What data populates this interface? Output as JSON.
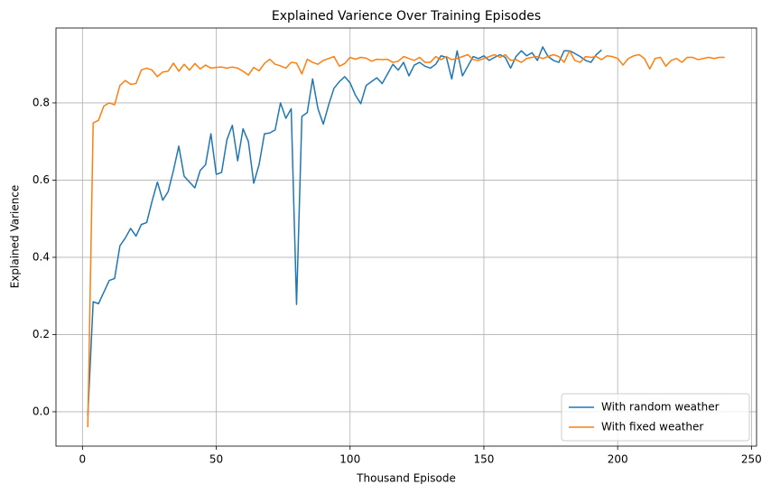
{
  "chart_data": {
    "type": "line",
    "title": "Explained Varience Over Training Episodes",
    "x_label": "Thousand Episode",
    "y_label": "Explained Varience",
    "xlim": [
      -9.9,
      251.9
    ],
    "ylim": [
      -0.089,
      0.994
    ],
    "xticks": [
      0,
      50,
      100,
      150,
      200,
      250
    ],
    "yticks": [
      {
        "value": 0,
        "label": "0.0"
      },
      0.2,
      0.4,
      0.6,
      0.8
    ],
    "grid": true,
    "legend": "lower right",
    "series": [
      {
        "name": "With random weather",
        "color": "#1f77b4",
        "x": [
          2,
          4,
          6,
          8,
          10,
          12,
          14,
          16,
          18,
          20,
          22,
          24,
          26,
          28,
          30,
          32,
          34,
          36,
          38,
          40,
          42,
          44,
          46,
          48,
          50,
          52,
          54,
          56,
          58,
          60,
          62,
          64,
          66,
          68,
          70,
          72,
          74,
          76,
          78,
          80,
          82,
          84,
          86,
          88,
          90,
          92,
          94,
          96,
          98,
          100,
          102,
          104,
          106,
          108,
          110,
          112,
          114,
          116,
          118,
          120,
          122,
          124,
          126,
          128,
          130,
          132,
          134,
          136,
          138,
          140,
          142,
          144,
          146,
          148,
          150,
          152,
          154,
          156,
          158,
          160,
          162,
          164,
          166,
          168,
          170,
          172,
          174,
          176,
          178,
          180,
          182,
          184,
          186,
          188,
          190,
          192,
          194
        ],
        "values": [
          -0.01,
          0.285,
          0.28,
          0.31,
          0.34,
          0.345,
          0.43,
          0.45,
          0.475,
          0.455,
          0.485,
          0.49,
          0.545,
          0.595,
          0.548,
          0.57,
          0.625,
          0.688,
          0.61,
          0.595,
          0.58,
          0.625,
          0.64,
          0.72,
          0.615,
          0.62,
          0.705,
          0.742,
          0.65,
          0.733,
          0.7,
          0.592,
          0.64,
          0.72,
          0.722,
          0.73,
          0.8,
          0.76,
          0.785,
          0.278,
          0.765,
          0.775,
          0.862,
          0.785,
          0.745,
          0.795,
          0.838,
          0.855,
          0.868,
          0.852,
          0.82,
          0.798,
          0.845,
          0.855,
          0.865,
          0.85,
          0.875,
          0.9,
          0.885,
          0.905,
          0.87,
          0.898,
          0.905,
          0.895,
          0.89,
          0.9,
          0.922,
          0.918,
          0.862,
          0.935,
          0.87,
          0.895,
          0.92,
          0.915,
          0.922,
          0.91,
          0.918,
          0.925,
          0.918,
          0.89,
          0.92,
          0.935,
          0.922,
          0.93,
          0.91,
          0.945,
          0.92,
          0.91,
          0.905,
          0.935,
          0.935,
          0.928,
          0.92,
          0.91,
          0.905,
          0.925,
          0.937
        ]
      },
      {
        "name": "With fixed weather",
        "color": "#ff7f0e",
        "x": [
          2,
          4,
          6,
          8,
          10,
          12,
          14,
          16,
          18,
          20,
          22,
          24,
          26,
          28,
          30,
          32,
          34,
          36,
          38,
          40,
          42,
          44,
          46,
          48,
          50,
          52,
          54,
          56,
          58,
          60,
          62,
          64,
          66,
          68,
          70,
          72,
          74,
          76,
          78,
          80,
          82,
          84,
          86,
          88,
          90,
          92,
          94,
          96,
          98,
          100,
          102,
          104,
          106,
          108,
          110,
          112,
          114,
          116,
          118,
          120,
          122,
          124,
          126,
          128,
          130,
          132,
          134,
          136,
          138,
          140,
          142,
          144,
          146,
          148,
          150,
          152,
          154,
          156,
          158,
          160,
          162,
          164,
          166,
          168,
          170,
          172,
          174,
          176,
          178,
          180,
          182,
          184,
          186,
          188,
          190,
          192,
          194,
          196,
          198,
          200,
          202,
          204,
          206,
          208,
          210,
          212,
          214,
          216,
          218,
          220,
          222,
          224,
          226,
          228,
          230,
          232,
          234,
          236,
          238,
          240
        ],
        "values": [
          -0.04,
          0.748,
          0.755,
          0.792,
          0.8,
          0.795,
          0.845,
          0.858,
          0.848,
          0.85,
          0.885,
          0.89,
          0.885,
          0.868,
          0.88,
          0.882,
          0.903,
          0.882,
          0.9,
          0.885,
          0.902,
          0.888,
          0.898,
          0.89,
          0.892,
          0.893,
          0.89,
          0.893,
          0.89,
          0.882,
          0.872,
          0.892,
          0.883,
          0.902,
          0.913,
          0.9,
          0.896,
          0.89,
          0.905,
          0.903,
          0.875,
          0.913,
          0.905,
          0.9,
          0.91,
          0.915,
          0.92,
          0.895,
          0.902,
          0.918,
          0.913,
          0.918,
          0.916,
          0.908,
          0.913,
          0.912,
          0.913,
          0.905,
          0.908,
          0.92,
          0.915,
          0.91,
          0.918,
          0.905,
          0.905,
          0.92,
          0.912,
          0.92,
          0.912,
          0.915,
          0.92,
          0.925,
          0.912,
          0.91,
          0.915,
          0.92,
          0.925,
          0.918,
          0.925,
          0.91,
          0.912,
          0.905,
          0.915,
          0.918,
          0.92,
          0.915,
          0.92,
          0.925,
          0.92,
          0.905,
          0.935,
          0.91,
          0.905,
          0.92,
          0.918,
          0.92,
          0.912,
          0.922,
          0.92,
          0.915,
          0.898,
          0.915,
          0.922,
          0.925,
          0.915,
          0.888,
          0.915,
          0.918,
          0.895,
          0.91,
          0.915,
          0.905,
          0.918,
          0.918,
          0.912,
          0.915,
          0.918,
          0.915,
          0.918,
          0.918
        ]
      }
    ]
  }
}
